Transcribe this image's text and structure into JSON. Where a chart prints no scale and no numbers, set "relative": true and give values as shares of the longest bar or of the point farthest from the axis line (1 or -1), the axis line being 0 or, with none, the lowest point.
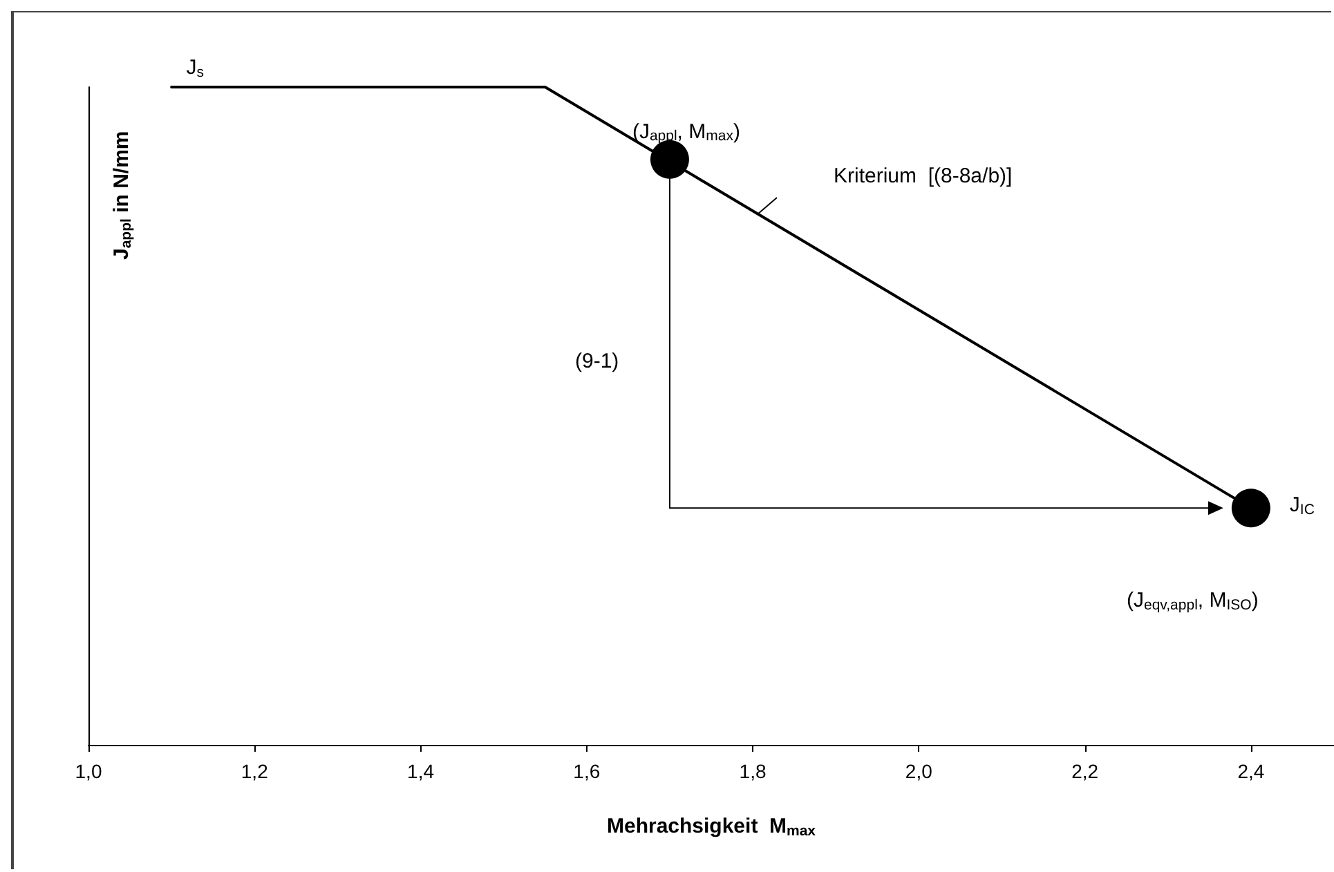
{
  "chart_data": {
    "type": "line",
    "relative": true,
    "tick_labels": "x",
    "xlabel": "Mehrachsigkeit  M$_{max}$",
    "ylabel": "J$_{appl}$ in N/mm",
    "xlim": [
      1.0,
      2.5
    ],
    "xticks": [
      {
        "value": 1.0,
        "label": "1,0"
      },
      {
        "value": 1.2,
        "label": "1,2"
      },
      {
        "value": 1.4,
        "label": "1,4"
      },
      {
        "value": 1.6,
        "label": "1,6"
      },
      {
        "value": 1.8,
        "label": "1,8"
      },
      {
        "value": 2.0,
        "label": "2,0"
      },
      {
        "value": 2.2,
        "label": "2,2"
      },
      {
        "value": 2.4,
        "label": "2,4"
      }
    ],
    "series": [
      {
        "color": "#000000",
        "marker": "none",
        "line_style": "solid",
        "x": [
          1.1,
          1.55,
          2.4
        ],
        "values": [
          1,
          1,
          0.36
        ]
      },
      {
        "type": "scatter",
        "color": "#000000",
        "marker": "circle",
        "x": [
          1.7,
          2.4
        ],
        "values": [
          0.89,
          0.36
        ]
      }
    ],
    "annotations": [
      {
        "text": "J$_{s}$",
        "x": 1.1,
        "y": 1
      },
      {
        "text": "(J$_{appl}$, M$_{max}$)",
        "x": 1.7,
        "y": 0.89
      },
      "Kriterium  [(8-8a/b)]",
      "(9-1)",
      {
        "text": "J$_{IC}$",
        "x": 2.4,
        "y": 0.36
      },
      "(J$_{eqv,appl}$, M$_{ISO}$)"
    ]
  }
}
